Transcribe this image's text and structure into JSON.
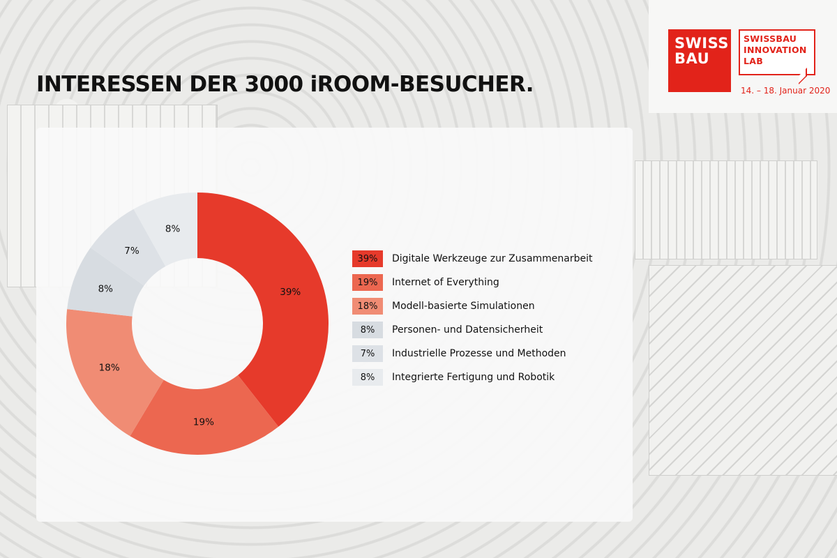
{
  "title": "INTERESSEN DER 3000 iROOM-BESUCHER.",
  "logo": {
    "brand": "SWISS\nBAU",
    "lab": "SWISSBAU\nINNOVATION\nLAB",
    "date": "14. – 18. Januar 2020"
  },
  "colors": {
    "brand_red": "#e2231a"
  },
  "chart_data": {
    "type": "pie",
    "donut": true,
    "unit": "%",
    "categories": [
      "Digitale Werkzeuge zur Zusammenarbeit",
      "Internet of Everything",
      "Modell-basierte Simulationen",
      "Personen- und Datensicherheit",
      "Industrielle Prozesse und Methoden",
      "Integrierte Fertigung und Robotik"
    ],
    "values": [
      39,
      19,
      18,
      8,
      7,
      8
    ],
    "labels": [
      "39%",
      "19%",
      "18%",
      "8%",
      "7%",
      "8%"
    ],
    "colors": [
      "#e63a2b",
      "#ec6750",
      "#f08c74",
      "#d7dce1",
      "#dde1e6",
      "#e8ebee"
    ],
    "legend_position": "right"
  }
}
